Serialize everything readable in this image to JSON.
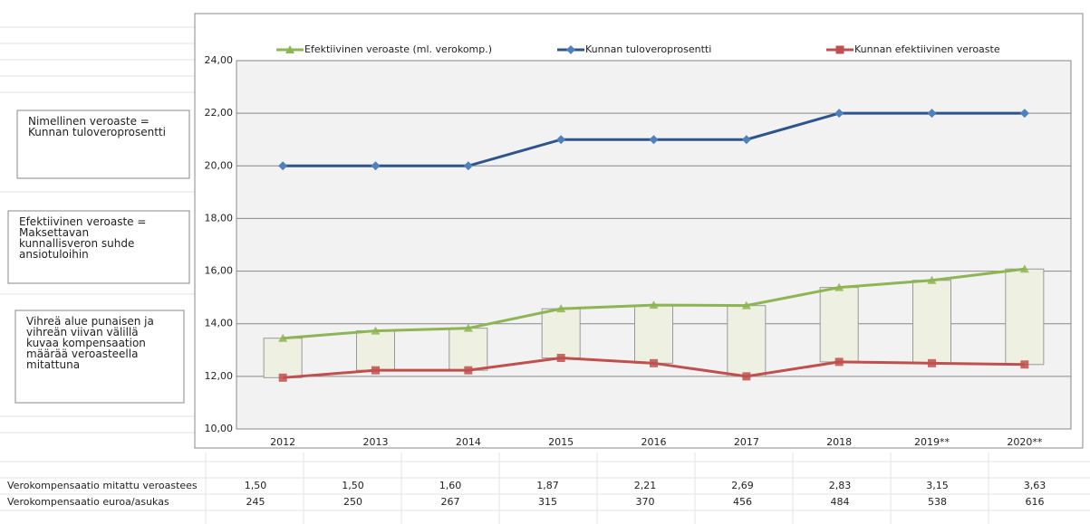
{
  "chart_data": {
    "type": "line",
    "categories": [
      "2012",
      "2013",
      "2014",
      "2015",
      "2016",
      "2017",
      "2018",
      "2019**",
      "2020**"
    ],
    "series": [
      {
        "name": "Efektiivinen veroaste (ml. verokomp.)",
        "color": "#8db552",
        "marker": "triangle",
        "values": [
          13.45,
          13.73,
          13.83,
          14.57,
          14.71,
          14.69,
          15.38,
          15.65,
          16.08
        ]
      },
      {
        "name": "Kunnan tuloveroprosentti",
        "color": "#2e548c",
        "marker": "diamond",
        "values": [
          20,
          20,
          20,
          21,
          21,
          21,
          22,
          22,
          22
        ]
      },
      {
        "name": "Kunnan efektiivinen veroaste",
        "color": "#c0504d",
        "marker": "square",
        "values": [
          11.95,
          12.23,
          12.23,
          12.7,
          12.5,
          12.0,
          12.55,
          12.5,
          12.45
        ]
      }
    ],
    "ylim": [
      10,
      24
    ],
    "yticks": [
      {
        "value": 10,
        "label": "10,00"
      },
      {
        "value": 12,
        "label": "12,00"
      },
      {
        "value": 14,
        "label": "14,00"
      },
      {
        "value": 16,
        "label": "16,00"
      },
      {
        "value": 18,
        "label": "18,00"
      },
      {
        "value": 20,
        "label": "20,00"
      },
      {
        "value": 22,
        "label": "22,00"
      },
      {
        "value": 24,
        "label": "24,00"
      }
    ],
    "grid": true,
    "legend": "top"
  },
  "notes": [
    "Nimellinen veroaste =\nKunnan tuloveroprosentti",
    "Efektiivinen veroaste =\nMaksettavan\nkunnallisveron suhde\nansiotuloihin",
    "Vihreä alue punaisen ja\nvihreän viivan välillä\nkuvaa kompensaation\nmäärää  veroasteella\nmitattuna"
  ],
  "table": {
    "rows": [
      [
        "Verokompensaatio mitattu veroastees",
        "1,50",
        "1,50",
        "1,60",
        "1,87",
        "2,21",
        "2,69",
        "2,83",
        "3,15",
        "3,63"
      ],
      [
        "Verokompensaatio euroa/asukas",
        "245",
        "250",
        "267",
        "315",
        "370",
        "456",
        "484",
        "538",
        "616"
      ]
    ]
  }
}
